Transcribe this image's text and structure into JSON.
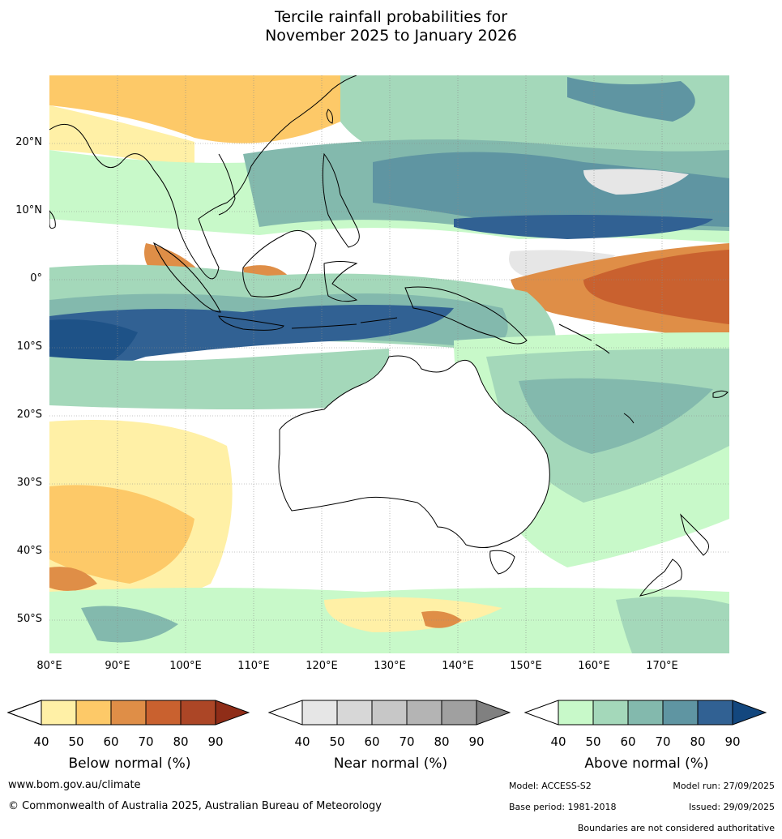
{
  "title": {
    "line1": "Tercile rainfall probabilities for",
    "line2": "November 2025 to January 2026"
  },
  "map": {
    "lat_labels": [
      "20°N",
      "10°N",
      "0°",
      "10°S",
      "20°S",
      "30°S",
      "40°S",
      "50°S"
    ],
    "lon_labels": [
      "80°E",
      "90°E",
      "100°E",
      "110°E",
      "120°E",
      "130°E",
      "140°E",
      "150°E",
      "160°E",
      "170°E"
    ]
  },
  "legends": {
    "below": {
      "caption": "Below normal (%)",
      "ticks": [
        "40",
        "50",
        "60",
        "70",
        "80",
        "90"
      ],
      "colors": [
        "#fff0a6",
        "#fdc968",
        "#df8e47",
        "#c9612f",
        "#ac4626",
        "#8f2d18"
      ]
    },
    "near": {
      "caption": "Near normal (%)",
      "ticks": [
        "40",
        "50",
        "60",
        "70",
        "80",
        "90"
      ],
      "colors": [
        "#e6e6e6",
        "#d7d7d7",
        "#c7c7c7",
        "#b4b4b4",
        "#a0a0a0",
        "#808080"
      ]
    },
    "above": {
      "caption": "Above normal (%)",
      "ticks": [
        "40",
        "50",
        "60",
        "70",
        "80",
        "90"
      ],
      "colors": [
        "#c8f9c9",
        "#a4d8ba",
        "#83b9ad",
        "#5f95a2",
        "#316193",
        "#13477e"
      ]
    }
  },
  "footer": {
    "website": "www.bom.gov.au/climate",
    "copyright": "© Commonwealth of Australia 2025, Australian Bureau of Meteorology",
    "model": "Model: ACCESS-S2",
    "model_run": "Model run: 27/09/2025",
    "base_period": "Base period: 1981-2018",
    "issued": "Issued: 29/09/2025",
    "disclaimer": "Boundaries are not considered authoritative"
  }
}
